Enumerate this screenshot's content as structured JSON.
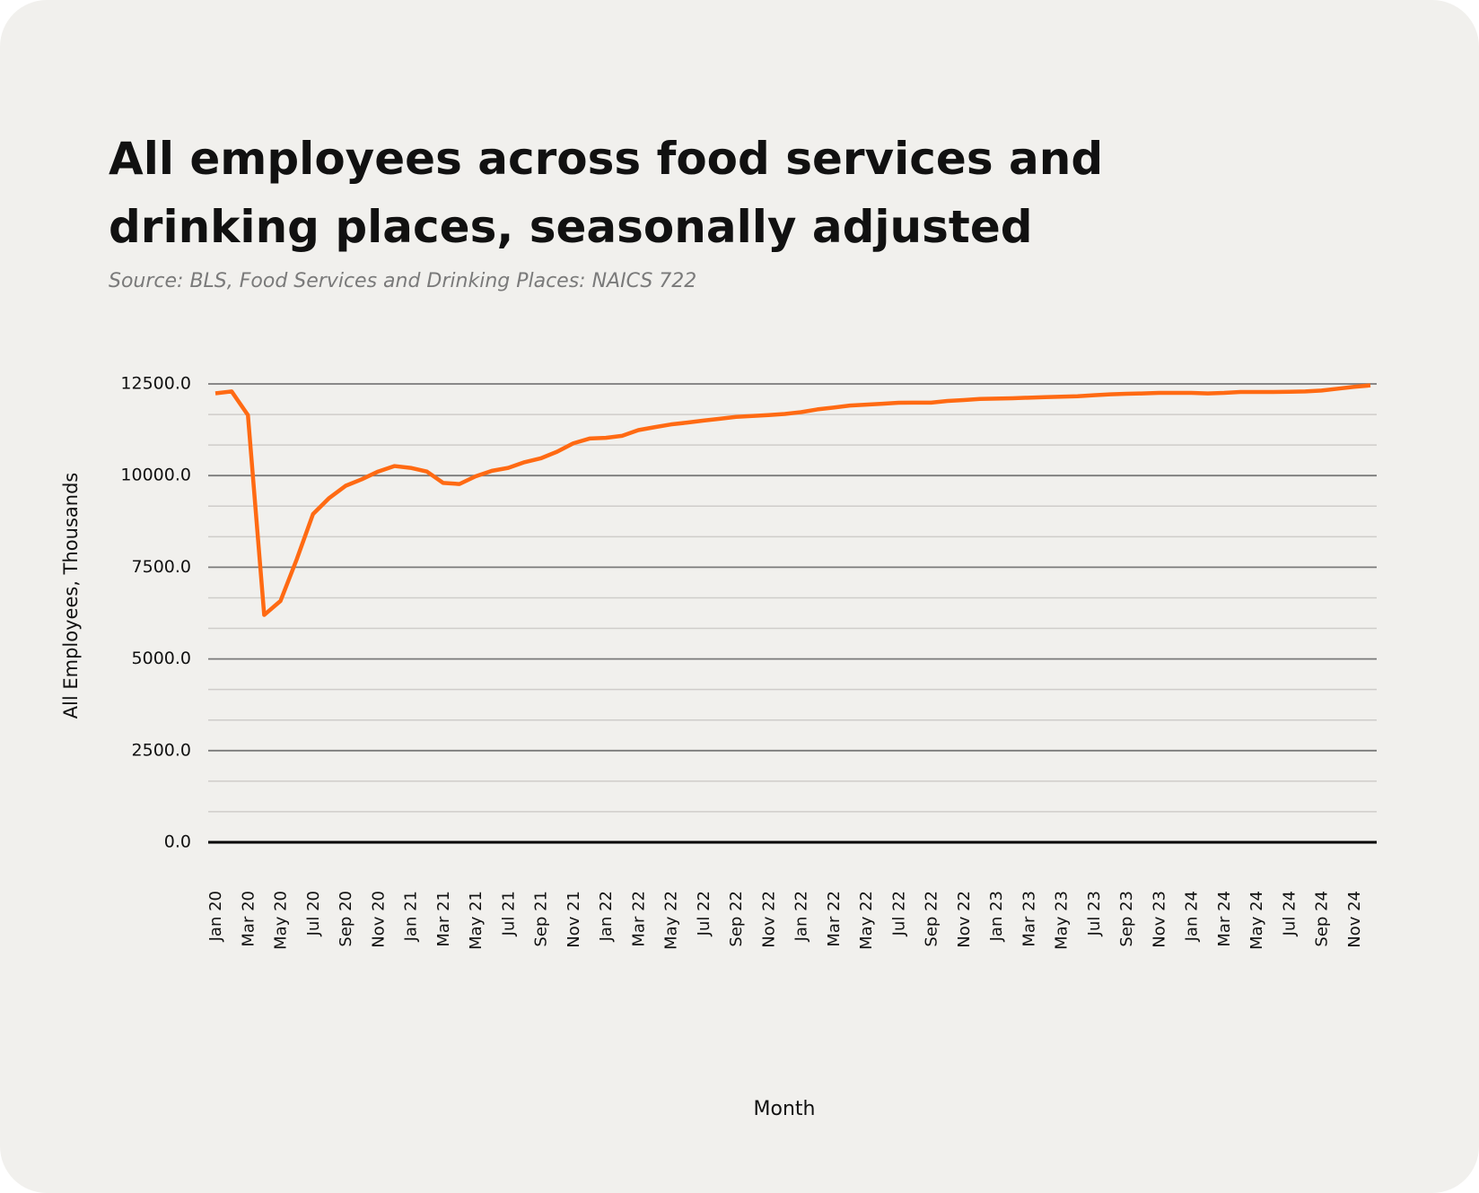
{
  "chart_data": {
    "type": "line",
    "title": "All employees across food services and drinking places, seasonally adjusted",
    "subtitle": "Source: BLS, Food Services and Drinking Places: NAICS 722",
    "y_label": "All Employees, Thousands",
    "x_label": "Month",
    "categories": [
      "Jan 20",
      null,
      "Mar 20",
      null,
      "May 20",
      null,
      "Jul 20",
      null,
      "Sep 20",
      null,
      "Nov 20",
      null,
      "Jan 21",
      null,
      "Mar 21",
      null,
      "May 21",
      null,
      "Jul 21",
      null,
      "Sep 21",
      null,
      "Nov 21",
      null,
      "Jan 22",
      null,
      "Mar 22",
      null,
      "May 22",
      null,
      "Jul 22",
      null,
      "Sep 22",
      null,
      "Nov 22",
      null,
      "Jan 22",
      null,
      "Mar 22",
      null,
      "May 22",
      null,
      "Jul 22",
      null,
      "Sep 22",
      null,
      "Nov 22",
      null,
      "Jan 23",
      null,
      "Mar 23",
      null,
      "May 23",
      null,
      "Jul 23",
      null,
      "Sep 23",
      null,
      "Nov 23",
      null,
      "Jan 24",
      null,
      "Mar 24",
      null,
      "May 24",
      null,
      "Jul 24",
      null,
      "Sep 24",
      null,
      "Nov 24",
      null
    ],
    "series": [
      {
        "name": "All Employees",
        "color": "#ff6a13",
        "values": [
          12243,
          12294,
          11650,
          6200,
          6580,
          7716,
          8950,
          9390,
          9720,
          9900,
          10110,
          10260,
          10210,
          10110,
          9800,
          9770,
          9980,
          10130,
          10210,
          10365,
          10470,
          10650,
          10880,
          11010,
          11030,
          11085,
          11240,
          11320,
          11395,
          11445,
          11500,
          11550,
          11600,
          11625,
          11650,
          11680,
          11730,
          11805,
          11855,
          11910,
          11935,
          11960,
          11985,
          11990,
          11990,
          12035,
          12060,
          12090,
          12100,
          12110,
          12125,
          12140,
          12150,
          12165,
          12190,
          12215,
          12230,
          12240,
          12255,
          12255,
          12255,
          12240,
          12255,
          12280,
          12280,
          12280,
          12285,
          12295,
          12320,
          12370,
          12420,
          12460
        ]
      }
    ],
    "ylim": [
      0,
      12500
    ],
    "yticks": [
      {
        "value": 0,
        "label": "0.0"
      },
      {
        "value": 2500,
        "label": "2500.0"
      },
      {
        "value": 5000,
        "label": "5000.0"
      },
      {
        "value": 7500,
        "label": "7500.0"
      },
      {
        "value": 10000,
        "label": "10000.0"
      },
      {
        "value": 12500,
        "label": "12500.0"
      }
    ],
    "minor_yticks": [
      833.3,
      1666.7,
      3333.3,
      4166.7,
      5833.3,
      6666.7,
      8333.3,
      9166.7,
      10833.3,
      11666.7
    ],
    "grid": true
  }
}
